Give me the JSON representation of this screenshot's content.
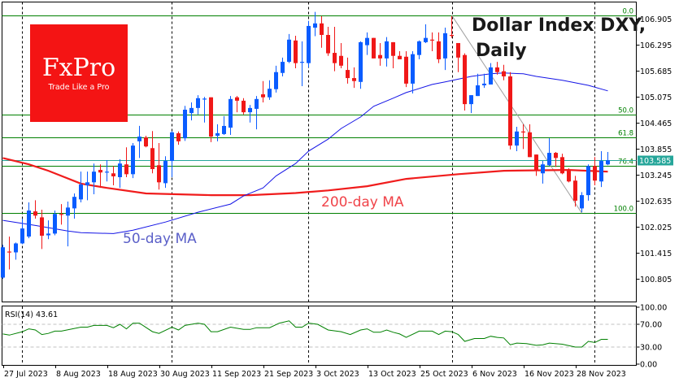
{
  "chart_data": {
    "type": "candlestick",
    "title": "Dollar Index DXY,",
    "subtitle": "Daily",
    "ylim": [
      100.27,
      107.29
    ],
    "grid": false,
    "price_ticks": [
      "106.905",
      "106.295",
      "105.685",
      "105.075",
      "104.465",
      "103.855",
      "103.245",
      "102.635",
      "102.025",
      "101.415",
      "100.805"
    ],
    "current_price": "103.585",
    "date_ticks": [
      {
        "label": "27 Jul 2023",
        "bar": 0
      },
      {
        "label": "8 Aug 2023",
        "bar": 8
      },
      {
        "label": "18 Aug 2023",
        "bar": 16
      },
      {
        "label": "30 Aug 2023",
        "bar": 24
      },
      {
        "label": "11 Sep 2023",
        "bar": 32
      },
      {
        "label": "21 Sep 2023",
        "bar": 40
      },
      {
        "label": "3 Oct 2023",
        "bar": 48
      },
      {
        "label": "13 Oct 2023",
        "bar": 56
      },
      {
        "label": "25 Oct 2023",
        "bar": 64
      },
      {
        "label": "6 Nov 2023",
        "bar": 72
      },
      {
        "label": "16 Nov 2023",
        "bar": 80
      },
      {
        "label": "28 Nov 2023",
        "bar": 88
      }
    ],
    "candles_ohlc": [
      [
        100.84,
        101.61,
        100.81,
        101.55
      ],
      [
        101.45,
        101.8,
        101.03,
        101.43
      ],
      [
        101.43,
        101.66,
        101.26,
        101.64
      ],
      [
        101.64,
        102.22,
        101.62,
        101.99
      ],
      [
        101.8,
        102.6,
        101.76,
        102.41
      ],
      [
        102.39,
        102.65,
        102.22,
        102.29
      ],
      [
        102.25,
        102.43,
        101.51,
        101.82
      ],
      [
        101.83,
        102.18,
        101.74,
        101.87
      ],
      [
        101.87,
        102.41,
        101.83,
        102.33
      ],
      [
        102.33,
        102.56,
        102.08,
        102.31
      ],
      [
        102.29,
        102.62,
        101.57,
        102.48
      ],
      [
        102.46,
        102.81,
        102.22,
        102.73
      ],
      [
        102.67,
        103.32,
        102.6,
        103.02
      ],
      [
        103.0,
        103.32,
        102.65,
        103.07
      ],
      [
        103.07,
        103.51,
        102.79,
        103.32
      ],
      [
        103.36,
        103.49,
        102.94,
        103.3
      ],
      [
        103.3,
        103.59,
        103.09,
        103.32
      ],
      [
        103.28,
        103.45,
        103.0,
        103.21
      ],
      [
        103.19,
        103.61,
        102.94,
        103.51
      ],
      [
        103.49,
        103.89,
        103.19,
        103.26
      ],
      [
        103.26,
        103.99,
        103.17,
        103.93
      ],
      [
        104.03,
        104.39,
        103.64,
        104.14
      ],
      [
        104.12,
        104.16,
        103.89,
        103.91
      ],
      [
        103.87,
        104.27,
        103.28,
        103.38
      ],
      [
        103.47,
        103.99,
        102.9,
        103.07
      ],
      [
        103.05,
        103.68,
        102.94,
        103.57
      ],
      [
        103.57,
        104.27,
        103.19,
        104.24
      ],
      [
        104.22,
        104.26,
        103.95,
        104.03
      ],
      [
        104.1,
        104.86,
        104.04,
        104.77
      ],
      [
        104.69,
        104.94,
        104.52,
        104.81
      ],
      [
        104.81,
        105.11,
        104.66,
        105.04
      ],
      [
        105.02,
        105.07,
        104.47,
        105.03
      ],
      [
        105.06,
        105.06,
        104.01,
        104.14
      ],
      [
        104.16,
        104.43,
        104.03,
        104.22
      ],
      [
        104.2,
        104.62,
        104.18,
        104.39
      ],
      [
        104.35,
        105.09,
        104.18,
        105.02
      ],
      [
        105.06,
        105.09,
        104.71,
        104.98
      ],
      [
        104.98,
        105.04,
        104.66,
        104.71
      ],
      [
        104.71,
        104.88,
        104.47,
        104.81
      ],
      [
        104.79,
        105.09,
        104.31,
        105.02
      ],
      [
        105.13,
        105.44,
        104.94,
        105.06
      ],
      [
        105.06,
        105.46,
        105.0,
        105.26
      ],
      [
        105.25,
        105.8,
        105.17,
        105.65
      ],
      [
        105.63,
        105.99,
        105.55,
        105.89
      ],
      [
        105.89,
        106.54,
        105.86,
        106.41
      ],
      [
        106.39,
        106.5,
        105.74,
        105.86
      ],
      [
        105.87,
        106.37,
        105.32,
        105.89
      ],
      [
        105.86,
        106.85,
        105.76,
        106.73
      ],
      [
        106.69,
        107.06,
        106.49,
        106.79
      ],
      [
        106.79,
        106.96,
        106.22,
        106.52
      ],
      [
        106.52,
        106.71,
        106.03,
        106.09
      ],
      [
        106.1,
        106.71,
        105.67,
        105.86
      ],
      [
        106.03,
        106.33,
        105.74,
        105.8
      ],
      [
        105.7,
        105.99,
        105.38,
        105.51
      ],
      [
        105.51,
        105.76,
        105.28,
        105.44
      ],
      [
        105.42,
        106.37,
        105.26,
        106.35
      ],
      [
        106.28,
        106.58,
        106.05,
        106.45
      ],
      [
        106.45,
        106.45,
        105.97,
        105.97
      ],
      [
        106.05,
        106.33,
        105.8,
        105.97
      ],
      [
        105.97,
        106.47,
        105.78,
        106.37
      ],
      [
        106.35,
        106.35,
        105.74,
        106.03
      ],
      [
        106.03,
        106.14,
        105.95,
        105.95
      ],
      [
        106.01,
        106.14,
        105.3,
        105.38
      ],
      [
        105.38,
        106.14,
        105.15,
        106.07
      ],
      [
        106.05,
        106.39,
        105.95,
        106.37
      ],
      [
        106.35,
        106.77,
        106.33,
        106.45
      ],
      [
        106.41,
        106.58,
        106.14,
        106.4
      ],
      [
        106.37,
        106.58,
        105.86,
        105.95
      ],
      [
        105.97,
        106.69,
        105.7,
        106.56
      ],
      [
        106.52,
        106.96,
        106.45,
        106.5
      ],
      [
        106.33,
        106.33,
        105.65,
        105.99
      ],
      [
        106.05,
        106.09,
        104.75,
        104.9
      ],
      [
        104.9,
        105.11,
        104.69,
        105.11
      ],
      [
        105.09,
        105.61,
        105.09,
        105.34
      ],
      [
        105.34,
        105.61,
        105.28,
        105.38
      ],
      [
        105.36,
        105.86,
        105.36,
        105.76
      ],
      [
        105.76,
        105.89,
        105.59,
        105.65
      ],
      [
        105.67,
        105.82,
        105.46,
        105.55
      ],
      [
        105.55,
        105.65,
        103.84,
        103.93
      ],
      [
        103.93,
        104.37,
        103.8,
        104.26
      ],
      [
        104.26,
        104.43,
        103.85,
        104.25
      ],
      [
        104.24,
        104.43,
        103.66,
        103.66
      ],
      [
        103.72,
        103.72,
        103.22,
        103.36
      ],
      [
        103.28,
        103.57,
        103.04,
        103.49
      ],
      [
        103.47,
        104.1,
        103.45,
        103.76
      ],
      [
        103.76,
        103.78,
        103.43,
        103.64
      ],
      [
        103.66,
        103.74,
        103.26,
        103.28
      ],
      [
        103.34,
        103.4,
        103.07,
        103.09
      ],
      [
        103.11,
        103.22,
        102.5,
        102.64
      ],
      [
        102.46,
        102.84,
        102.37,
        102.77
      ],
      [
        102.77,
        103.49,
        102.64,
        103.45
      ],
      [
        103.45,
        103.66,
        103.0,
        103.11
      ],
      [
        103.09,
        103.8,
        102.96,
        103.57
      ],
      [
        103.49,
        103.78,
        103.47,
        103.585
      ]
    ],
    "ma200": {
      "label": "200-day MA",
      "color": "#f01c1c",
      "points": [
        [
          0,
          103.64
        ],
        [
          4,
          103.49
        ],
        [
          7,
          103.34
        ],
        [
          12,
          103.04
        ],
        [
          16,
          102.94
        ],
        [
          22,
          102.81
        ],
        [
          32,
          102.77
        ],
        [
          38,
          102.77
        ],
        [
          45,
          102.82
        ],
        [
          50,
          102.88
        ],
        [
          56,
          102.98
        ],
        [
          62,
          103.15
        ],
        [
          70,
          103.26
        ],
        [
          77,
          103.34
        ],
        [
          87,
          103.36
        ],
        [
          93,
          103.32
        ]
      ]
    },
    "ma50": {
      "label": "50-day MA",
      "color": "#1414e6",
      "label_color": "#5a5fc8",
      "points": [
        [
          0,
          102.18
        ],
        [
          5,
          102.06
        ],
        [
          10,
          101.93
        ],
        [
          12,
          101.89
        ],
        [
          17,
          101.87
        ],
        [
          20,
          101.95
        ],
        [
          25,
          102.14
        ],
        [
          30,
          102.37
        ],
        [
          35,
          102.56
        ],
        [
          37,
          102.75
        ],
        [
          40,
          102.94
        ],
        [
          42,
          103.22
        ],
        [
          45,
          103.51
        ],
        [
          47,
          103.8
        ],
        [
          50,
          104.08
        ],
        [
          52,
          104.33
        ],
        [
          55,
          104.6
        ],
        [
          57,
          104.85
        ],
        [
          60,
          105.04
        ],
        [
          62,
          105.17
        ],
        [
          66,
          105.36
        ],
        [
          68,
          105.42
        ],
        [
          72,
          105.55
        ],
        [
          75,
          105.61
        ],
        [
          77,
          105.63
        ],
        [
          80,
          105.61
        ],
        [
          82,
          105.55
        ],
        [
          86,
          105.46
        ],
        [
          90,
          105.34
        ],
        [
          93,
          105.21
        ]
      ]
    },
    "fibonacci": [
      {
        "level": "0.0",
        "price": 106.98
      },
      {
        "level": "50.0",
        "price": 104.66
      },
      {
        "level": "61.8",
        "price": 104.12
      },
      {
        "level": "76.4",
        "price": 103.455
      },
      {
        "level": "100.0",
        "price": 102.35
      }
    ],
    "fib_trendline": [
      [
        69,
        106.98
      ],
      [
        89,
        102.35
      ]
    ],
    "rsi": {
      "label": "RSI(14) 43.61",
      "ylim": [
        0,
        100
      ],
      "ticks": [
        "100.00",
        "70.00",
        "30.00",
        "0.00"
      ],
      "levels": [
        70,
        30
      ],
      "points": [
        [
          0,
          53
        ],
        [
          1,
          51
        ],
        [
          3,
          57
        ],
        [
          4,
          62
        ],
        [
          5,
          60
        ],
        [
          6,
          52
        ],
        [
          7,
          54
        ],
        [
          8,
          58
        ],
        [
          9,
          58
        ],
        [
          12,
          65
        ],
        [
          13,
          65
        ],
        [
          14,
          68
        ],
        [
          16,
          68
        ],
        [
          17,
          64
        ],
        [
          18,
          70
        ],
        [
          19,
          62
        ],
        [
          20,
          72
        ],
        [
          21,
          72
        ],
        [
          23,
          57
        ],
        [
          24,
          54
        ],
        [
          26,
          65
        ],
        [
          27,
          60
        ],
        [
          28,
          68
        ],
        [
          30,
          72
        ],
        [
          31,
          70
        ],
        [
          32,
          57
        ],
        [
          33,
          57
        ],
        [
          35,
          65
        ],
        [
          37,
          61
        ],
        [
          38,
          61
        ],
        [
          39,
          64
        ],
        [
          41,
          64
        ],
        [
          42.5,
          72
        ],
        [
          44,
          76
        ],
        [
          45,
          65
        ],
        [
          46,
          65
        ],
        [
          47,
          72
        ],
        [
          48.4,
          70
        ],
        [
          50,
          60
        ],
        [
          52,
          57
        ],
        [
          53.4,
          52
        ],
        [
          55,
          60
        ],
        [
          56,
          62
        ],
        [
          57,
          56
        ],
        [
          58,
          56
        ],
        [
          59,
          60
        ],
        [
          60,
          56
        ],
        [
          61,
          53
        ],
        [
          62,
          47
        ],
        [
          64,
          58
        ],
        [
          66,
          58
        ],
        [
          67,
          52
        ],
        [
          68,
          58
        ],
        [
          69,
          57
        ],
        [
          70,
          52
        ],
        [
          71,
          40
        ],
        [
          72.5,
          45
        ],
        [
          74,
          45
        ],
        [
          75,
          49
        ],
        [
          76,
          47
        ],
        [
          77,
          46
        ],
        [
          78,
          34
        ],
        [
          79,
          37
        ],
        [
          80.5,
          36
        ],
        [
          82,
          33
        ],
        [
          83,
          34
        ],
        [
          84,
          37
        ],
        [
          86,
          35
        ],
        [
          88,
          30
        ],
        [
          89,
          30
        ],
        [
          90,
          40
        ],
        [
          91,
          38
        ],
        [
          92,
          43.61
        ],
        [
          93,
          43.61
        ]
      ]
    },
    "colors": {
      "bull": "#0a5cff",
      "bear": "#f01818",
      "fib": "#008000",
      "current": "#26a69a",
      "rsi": "#008000"
    }
  },
  "logo": {
    "name": "FxPro",
    "tagline": "Trade Like a Pro",
    "color": "#f41414"
  }
}
